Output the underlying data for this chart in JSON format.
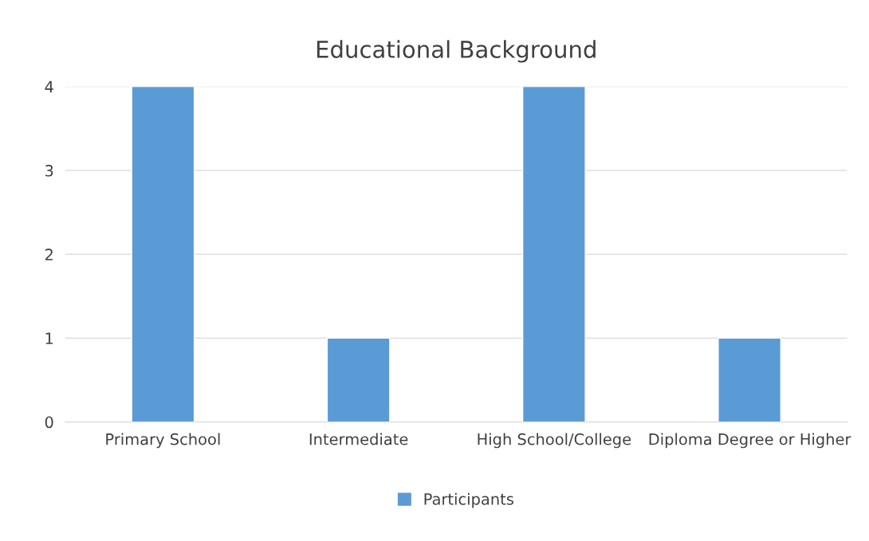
{
  "chart_data": {
    "type": "bar",
    "title": "Educational Background",
    "categories": [
      "Primary School",
      "Intermediate",
      "High School/College",
      "Diploma Degree or Higher"
    ],
    "series": [
      {
        "name": "Participants",
        "color": "#5b9bd5",
        "values": [
          4,
          1,
          4,
          1
        ]
      }
    ],
    "ylim": [
      0,
      4
    ],
    "yticks": [
      0,
      1,
      2,
      3,
      4
    ],
    "grid": "y",
    "legend": "bottom"
  }
}
